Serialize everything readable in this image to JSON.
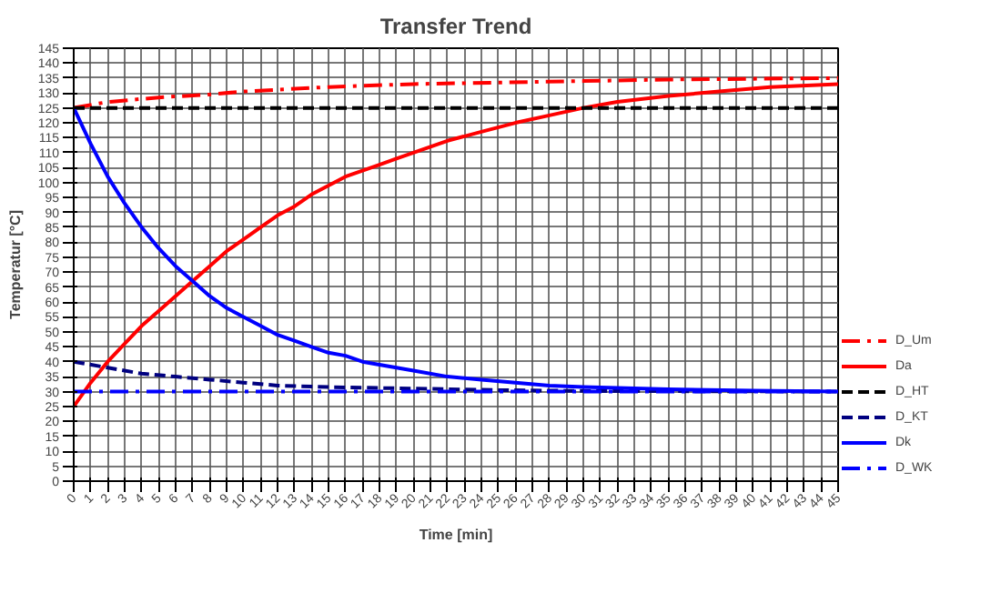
{
  "chart_data": {
    "type": "line",
    "title": "Transfer Trend",
    "xlabel": "Time [min]",
    "ylabel": "Temperatur [°C]",
    "xlim": [
      0,
      45
    ],
    "xticks": [
      0,
      1,
      2,
      3,
      4,
      5,
      6,
      7,
      8,
      9,
      10,
      11,
      12,
      13,
      14,
      15,
      16,
      17,
      18,
      19,
      20,
      21,
      22,
      23,
      24,
      25,
      26,
      27,
      28,
      29,
      30,
      31,
      32,
      33,
      34,
      35,
      36,
      37,
      38,
      39,
      40,
      41,
      42,
      43,
      44,
      45
    ],
    "ylim": [
      0,
      145
    ],
    "yticks": [
      0,
      5,
      10,
      15,
      20,
      25,
      30,
      35,
      40,
      45,
      50,
      55,
      60,
      65,
      70,
      75,
      80,
      85,
      90,
      95,
      100,
      105,
      110,
      115,
      120,
      125,
      130,
      135,
      140,
      145
    ],
    "grid": true,
    "legend": "right",
    "marker": "none",
    "series": [
      {
        "name": "D_Um",
        "color": "#ff0000",
        "line_style": "dashdot",
        "x": [
          0,
          2,
          5,
          8,
          10,
          15,
          20,
          25,
          30,
          35,
          45
        ],
        "values": [
          125,
          127,
          128.5,
          129.5,
          130.5,
          132,
          133,
          133.5,
          134,
          134.5,
          135
        ]
      },
      {
        "name": "Da",
        "color": "#ff0000",
        "line_style": "solid",
        "x": [
          0,
          1,
          2,
          3,
          4,
          5,
          6,
          7,
          8,
          9,
          10,
          11,
          12,
          13,
          14,
          15,
          16,
          17,
          18,
          19,
          20,
          22,
          24,
          26,
          28,
          30,
          32,
          35,
          38,
          41,
          45
        ],
        "values": [
          25,
          33,
          40,
          46,
          52,
          57,
          62,
          67,
          72,
          77,
          81,
          85,
          89,
          92,
          96,
          99,
          102,
          104,
          106,
          108,
          110,
          114,
          117,
          120,
          122.5,
          125,
          127,
          129,
          130.5,
          132,
          133
        ]
      },
      {
        "name": "D_HT",
        "color": "#000000",
        "line_style": "dashed",
        "x": [
          0,
          45
        ],
        "values": [
          125,
          125
        ]
      },
      {
        "name": "D_KT",
        "color": "#000080",
        "line_style": "dashed",
        "x": [
          0,
          2,
          4,
          6,
          8,
          10,
          12,
          15,
          20,
          25,
          30,
          45
        ],
        "values": [
          40,
          38,
          36,
          35,
          34,
          33,
          32,
          31.5,
          31,
          30.5,
          30.2,
          30
        ]
      },
      {
        "name": "Dk",
        "color": "#0000ff",
        "line_style": "solid",
        "x": [
          0,
          1,
          2,
          3,
          4,
          5,
          6,
          7,
          8,
          9,
          10,
          11,
          12,
          13,
          14,
          15,
          16,
          17,
          18,
          19,
          20,
          22,
          24,
          26,
          28,
          30,
          35,
          40,
          45
        ],
        "values": [
          125,
          113,
          102,
          93,
          85,
          78,
          72,
          67,
          62,
          58,
          55,
          52,
          49,
          47,
          45,
          43,
          42,
          40,
          39,
          38,
          37,
          35,
          34,
          33,
          32,
          31.5,
          30.8,
          30.3,
          30
        ]
      },
      {
        "name": "D_WK",
        "color": "#0000ff",
        "line_style": "dashdot",
        "x": [
          0,
          45
        ],
        "values": [
          30,
          30
        ]
      }
    ]
  }
}
